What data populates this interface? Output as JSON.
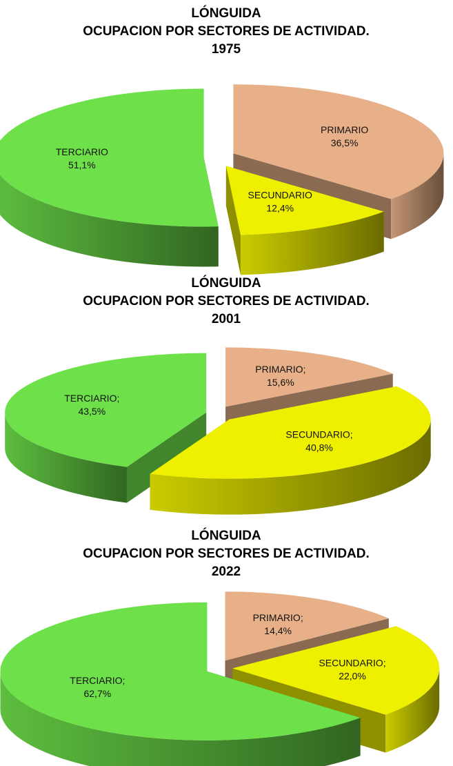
{
  "chart_data": [
    {
      "type": "pie",
      "title": [
        "LÓNGUIDA",
        "OCUPACION POR SECTORES DE ACTIVIDAD.",
        "1975"
      ],
      "categories": [
        "PRIMARIO",
        "SECUNDARIO",
        "TERCIARIO"
      ],
      "values": [
        36.5,
        12.4,
        51.1
      ],
      "value_labels": [
        "36,5%",
        "12,4%",
        "51,1%"
      ],
      "colors": [
        "#e8b088",
        "#eef000",
        "#6de04a"
      ]
    },
    {
      "type": "pie",
      "title": [
        "LÓNGUIDA",
        "OCUPACION POR SECTORES DE ACTIVIDAD.",
        "2001"
      ],
      "categories": [
        "PRIMARIO;",
        "SECUNDARIO;",
        "TERCIARIO;"
      ],
      "values": [
        15.6,
        40.8,
        43.5
      ],
      "value_labels": [
        "15,6%",
        "40,8%",
        "43,5%"
      ],
      "colors": [
        "#e8b088",
        "#eef000",
        "#6de04a"
      ]
    },
    {
      "type": "pie",
      "title": [
        "LÓNGUIDA",
        "OCUPACION POR SECTORES DE ACTIVIDAD.",
        "2022"
      ],
      "categories": [
        "PRIMARIO;",
        "SECUNDARIO;",
        "TERCIARIO;"
      ],
      "values": [
        14.4,
        22.0,
        62.7
      ],
      "value_labels": [
        "14,4%",
        "22,0%",
        "62,7%"
      ],
      "colors": [
        "#e8b088",
        "#eef000",
        "#6de04a"
      ]
    }
  ]
}
